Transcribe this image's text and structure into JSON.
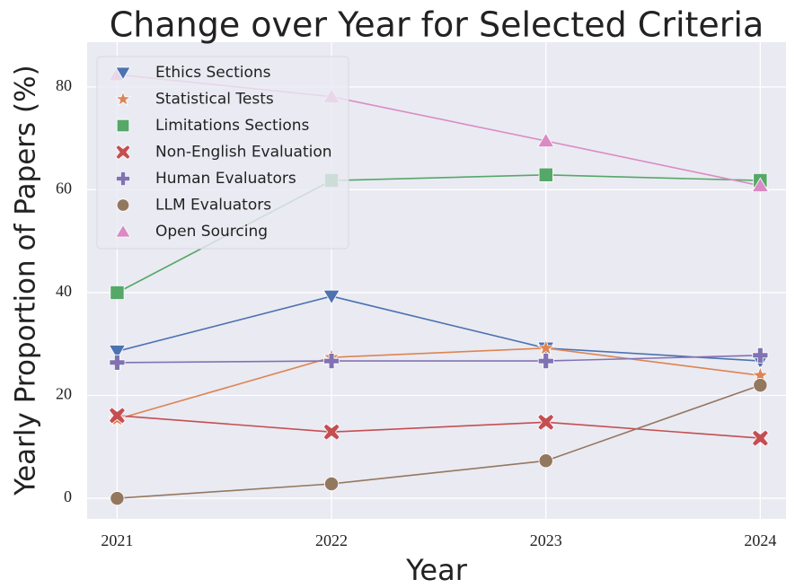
{
  "chart_data": {
    "type": "line",
    "title": "Change over Year for Selected Criteria",
    "xlabel": "Year",
    "ylabel": "Yearly Proportion of Papers (%)",
    "x": [
      2021,
      2022,
      2023,
      2024
    ],
    "xlim": [
      2020.86,
      2024.12
    ],
    "xticks": [
      2021,
      2022,
      2023,
      2024
    ],
    "ylim": [
      -4,
      88.7
    ],
    "yticks": [
      0,
      20,
      40,
      60,
      80
    ],
    "grid": true,
    "legend": "upper left",
    "series": [
      {
        "name": "Ethics Sections",
        "color": "#4c72b0",
        "marker": "v",
        "values": [
          28.6,
          39.3,
          29.2,
          26.7
        ]
      },
      {
        "name": "Statistical Tests",
        "color": "#dd8452",
        "marker": "*",
        "values": [
          15.4,
          27.4,
          29.2,
          23.9
        ]
      },
      {
        "name": "Limitations Sections",
        "color": "#55a868",
        "marker": "s",
        "values": [
          40,
          61.8,
          62.9,
          61.8
        ]
      },
      {
        "name": "Non-English Evaluation",
        "color": "#c44e52",
        "marker": "X",
        "values": [
          16.1,
          12.9,
          14.8,
          11.7
        ]
      },
      {
        "name": "Human Evaluators",
        "color": "#8172b3",
        "marker": "P",
        "values": [
          26.4,
          26.7,
          26.7,
          27.8
        ]
      },
      {
        "name": "LLM Evaluators",
        "color": "#937860",
        "marker": "o",
        "values": [
          0,
          2.8,
          7.3,
          22.0
        ]
      },
      {
        "name": "Open Sourcing",
        "color": "#da8bc3",
        "marker": "^",
        "values": [
          82.4,
          78.1,
          69.5,
          60.8
        ]
      }
    ]
  }
}
